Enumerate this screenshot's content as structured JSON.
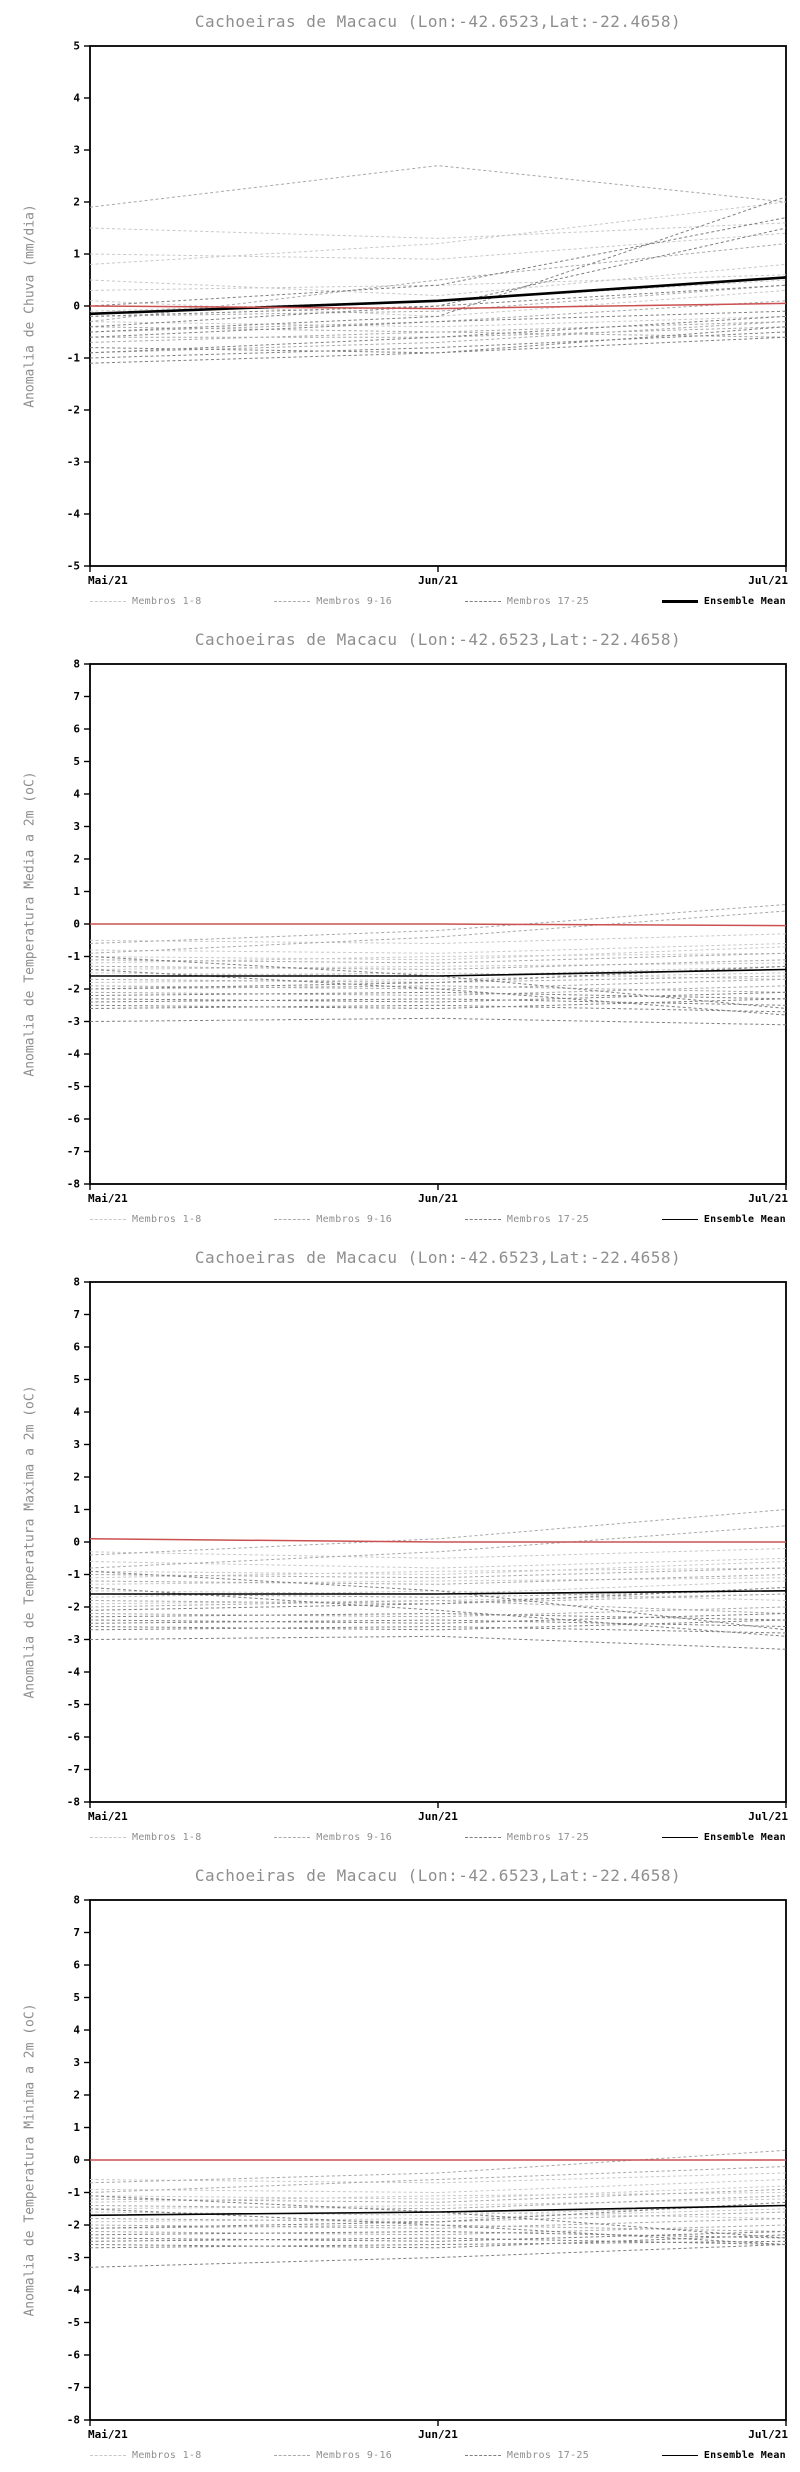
{
  "page_title": "Cachoeiras de Macacu ensemble forecast anomalies",
  "colors": {
    "members_1_8": "#c9c9c9",
    "members_9_16": "#a9a9a9",
    "members_17_25": "#808080",
    "ensemble_mean": "#000000",
    "zero_line": "#cc5050",
    "axis": "#000000",
    "title_gray": "#8e8e8e"
  },
  "chart_data": [
    {
      "type": "line",
      "title": "Cachoeiras de Macacu (Lon:-42.6523,Lat:-22.4658)",
      "ylabel": "Anomalia de Chuva (mm/dia)",
      "xlabel": "",
      "ylim": [
        -5,
        5
      ],
      "ytick_step": 1,
      "x": [
        "Mai/21",
        "Jun/21",
        "Jul/21"
      ],
      "grid": false,
      "legend_position": "bottom",
      "series_groups": [
        {
          "label": "Membros 1-8",
          "color": "#c9c9c9",
          "dash": "3 2.5",
          "width": 1,
          "in_legend": true,
          "label_bold": false,
          "members": [
            [
              1.5,
              1.3,
              1.6
            ],
            [
              1.0,
              0.9,
              1.4
            ],
            [
              0.8,
              1.2,
              2.0
            ],
            [
              0.5,
              0.2,
              0.8
            ],
            [
              0.3,
              0.4,
              0.6
            ],
            [
              0.1,
              -0.2,
              0.3
            ],
            [
              -0.1,
              0.1,
              0.5
            ],
            [
              -0.3,
              -0.4,
              -0.2
            ]
          ]
        },
        {
          "label": "Membros 9-16",
          "color": "#a9a9a9",
          "dash": "3 2.5",
          "width": 1,
          "in_legend": true,
          "label_bold": false,
          "members": [
            [
              1.9,
              2.7,
              2.0
            ],
            [
              -0.2,
              -0.1,
              0.4
            ],
            [
              -0.4,
              -0.5,
              -0.3
            ],
            [
              -0.5,
              -0.3,
              0.1
            ],
            [
              -0.6,
              -0.6,
              -0.4
            ],
            [
              -0.7,
              -0.5,
              -0.6
            ],
            [
              -0.9,
              -0.7,
              -0.3
            ],
            [
              -0.3,
              0.5,
              1.2
            ]
          ]
        },
        {
          "label": "Membros 17-25",
          "color": "#808080",
          "dash": "3 2.5",
          "width": 1,
          "in_legend": true,
          "label_bold": false,
          "members": [
            [
              -1.0,
              -0.8,
              -0.5
            ],
            [
              -1.1,
              -0.9,
              -0.6
            ],
            [
              -0.8,
              -0.9,
              -0.4
            ],
            [
              -0.2,
              0.0,
              1.5
            ],
            [
              0.0,
              0.4,
              1.7
            ],
            [
              -0.4,
              0.0,
              0.4
            ],
            [
              -0.6,
              -0.3,
              -0.1
            ],
            [
              -0.9,
              -0.6,
              -0.2
            ],
            [
              -0.5,
              -0.2,
              2.1
            ]
          ]
        },
        {
          "label": "Ensemble Mean",
          "color": "#000000",
          "dash": "",
          "width": 2.6,
          "in_legend": true,
          "label_bold": true,
          "members": [
            [
              -0.15,
              0.1,
              0.55
            ]
          ]
        },
        {
          "label": "zero-line",
          "color": "#cc5050",
          "dash": "",
          "width": 1.5,
          "in_legend": false,
          "label_bold": false,
          "members": [
            [
              0.0,
              -0.05,
              0.05
            ]
          ]
        }
      ]
    },
    {
      "type": "line",
      "title": "Cachoeiras de Macacu (Lon:-42.6523,Lat:-22.4658)",
      "ylabel": "Anomalia de Temperatura Media a 2m (oC)",
      "xlabel": "",
      "ylim": [
        -8,
        8
      ],
      "ytick_step": 1,
      "x": [
        "Mai/21",
        "Jun/21",
        "Jul/21"
      ],
      "grid": false,
      "legend_position": "bottom",
      "series_groups": [
        {
          "label": "Membros 1-8",
          "color": "#c9c9c9",
          "dash": "3 2.5",
          "width": 1,
          "in_legend": true,
          "label_bold": false,
          "members": [
            [
              -0.5,
              -0.6,
              -0.3
            ],
            [
              -0.8,
              -0.9,
              -0.6
            ],
            [
              -1.0,
              -1.1,
              -0.7
            ],
            [
              -1.2,
              -1.0,
              -0.9
            ],
            [
              -1.4,
              -1.3,
              -1.2
            ],
            [
              -1.5,
              -1.6,
              -1.3
            ],
            [
              -1.6,
              -1.5,
              -1.7
            ],
            [
              -1.8,
              -1.7,
              -1.5
            ]
          ]
        },
        {
          "label": "Membros 9-16",
          "color": "#a9a9a9",
          "dash": "3 2.5",
          "width": 1,
          "in_legend": true,
          "label_bold": false,
          "members": [
            [
              -0.6,
              -0.2,
              0.6
            ],
            [
              -0.9,
              -0.4,
              0.4
            ],
            [
              -1.1,
              -1.2,
              -0.9
            ],
            [
              -1.3,
              -1.4,
              -1.1
            ],
            [
              -1.7,
              -1.8,
              -1.6
            ],
            [
              -1.9,
              -2.0,
              -1.7
            ],
            [
              -2.0,
              -1.9,
              -2.1
            ],
            [
              -2.1,
              -2.2,
              -1.9
            ]
          ]
        },
        {
          "label": "Membros 17-25",
          "color": "#808080",
          "dash": "3 2.5",
          "width": 1,
          "in_legend": true,
          "label_bold": false,
          "members": [
            [
              -2.2,
              -2.1,
              -2.3
            ],
            [
              -2.3,
              -2.4,
              -2.1
            ],
            [
              -2.4,
              -2.3,
              -2.5
            ],
            [
              -2.5,
              -2.6,
              -2.3
            ],
            [
              -3.0,
              -2.9,
              -3.1
            ],
            [
              -1.0,
              -1.6,
              -2.6
            ],
            [
              -1.4,
              -2.0,
              -2.8
            ],
            [
              -2.0,
              -1.8,
              -1.3
            ],
            [
              -2.6,
              -2.5,
              -2.7
            ]
          ]
        },
        {
          "label": "Ensemble Mean",
          "color": "#000000",
          "dash": "",
          "width": 1.6,
          "in_legend": true,
          "label_bold": true,
          "members": [
            [
              -1.6,
              -1.6,
              -1.4
            ]
          ]
        },
        {
          "label": "zero-line",
          "color": "#cc5050",
          "dash": "",
          "width": 1.5,
          "in_legend": false,
          "label_bold": false,
          "members": [
            [
              0.0,
              0.0,
              -0.05
            ]
          ]
        }
      ]
    },
    {
      "type": "line",
      "title": "Cachoeiras de Macacu (Lon:-42.6523,Lat:-22.4658)",
      "ylabel": "Anomalia de Temperatura Maxima a 2m (oC)",
      "xlabel": "",
      "ylim": [
        -8,
        8
      ],
      "ytick_step": 1,
      "x": [
        "Mai/21",
        "Jun/21",
        "Jul/21"
      ],
      "grid": false,
      "legend_position": "bottom",
      "series_groups": [
        {
          "label": "Membros 1-8",
          "color": "#c9c9c9",
          "dash": "3 2.5",
          "width": 1,
          "in_legend": true,
          "label_bold": false,
          "members": [
            [
              -0.3,
              -0.5,
              -0.2
            ],
            [
              -0.6,
              -0.8,
              -0.5
            ],
            [
              -0.9,
              -1.0,
              -0.6
            ],
            [
              -1.1,
              -0.9,
              -0.8
            ],
            [
              -1.3,
              -1.2,
              -1.1
            ],
            [
              -1.5,
              -1.6,
              -1.2
            ],
            [
              -1.7,
              -1.5,
              -1.8
            ],
            [
              -1.9,
              -1.8,
              -1.6
            ]
          ]
        },
        {
          "label": "Membros 9-16",
          "color": "#a9a9a9",
          "dash": "3 2.5",
          "width": 1,
          "in_legend": true,
          "label_bold": false,
          "members": [
            [
              -0.4,
              0.1,
              1.0
            ],
            [
              -0.8,
              -0.3,
              0.5
            ],
            [
              -1.0,
              -1.1,
              -0.8
            ],
            [
              -1.2,
              -1.3,
              -1.0
            ],
            [
              -1.6,
              -1.7,
              -1.5
            ],
            [
              -1.8,
              -1.9,
              -1.6
            ],
            [
              -2.0,
              -1.8,
              -2.2
            ],
            [
              -2.2,
              -2.3,
              -2.0
            ]
          ]
        },
        {
          "label": "Membros 17-25",
          "color": "#808080",
          "dash": "3 2.5",
          "width": 1,
          "in_legend": true,
          "label_bold": false,
          "members": [
            [
              -2.3,
              -2.2,
              -2.4
            ],
            [
              -2.4,
              -2.5,
              -2.2
            ],
            [
              -2.5,
              -2.4,
              -2.6
            ],
            [
              -2.6,
              -2.7,
              -2.4
            ],
            [
              -3.0,
              -2.9,
              -3.3
            ],
            [
              -0.9,
              -1.5,
              -2.7
            ],
            [
              -1.4,
              -2.1,
              -2.9
            ],
            [
              -2.1,
              -1.9,
              -1.4
            ],
            [
              -2.7,
              -2.6,
              -2.8
            ]
          ]
        },
        {
          "label": "Ensemble Mean",
          "color": "#000000",
          "dash": "",
          "width": 1.6,
          "in_legend": true,
          "label_bold": true,
          "members": [
            [
              -1.6,
              -1.6,
              -1.5
            ]
          ]
        },
        {
          "label": "zero-line",
          "color": "#cc5050",
          "dash": "",
          "width": 1.5,
          "in_legend": false,
          "label_bold": false,
          "members": [
            [
              0.1,
              0.0,
              0.0
            ]
          ]
        }
      ]
    },
    {
      "type": "line",
      "title": "Cachoeiras de Macacu (Lon:-42.6523,Lat:-22.4658)",
      "ylabel": "Anomalia de Temperatura Minima a 2m (oC)",
      "xlabel": "",
      "ylim": [
        -8,
        8
      ],
      "ytick_step": 1,
      "x": [
        "Mai/21",
        "Jun/21",
        "Jul/21"
      ],
      "grid": false,
      "legend_position": "bottom",
      "series_groups": [
        {
          "label": "Membros 1-8",
          "color": "#c9c9c9",
          "dash": "3 2.5",
          "width": 1,
          "in_legend": true,
          "label_bold": false,
          "members": [
            [
              -0.6,
              -0.7,
              -0.4
            ],
            [
              -0.9,
              -1.0,
              -0.6
            ],
            [
              -1.1,
              -1.2,
              -0.8
            ],
            [
              -1.3,
              -1.1,
              -1.0
            ],
            [
              -1.5,
              -1.4,
              -1.2
            ],
            [
              -1.6,
              -1.7,
              -1.4
            ],
            [
              -1.7,
              -1.6,
              -1.8
            ],
            [
              -1.9,
              -1.8,
              -1.5
            ]
          ]
        },
        {
          "label": "Membros 9-16",
          "color": "#a9a9a9",
          "dash": "3 2.5",
          "width": 1,
          "in_legend": true,
          "label_bold": false,
          "members": [
            [
              -0.7,
              -0.4,
              0.3
            ],
            [
              -1.0,
              -0.6,
              -0.2
            ],
            [
              -1.2,
              -1.3,
              -0.9
            ],
            [
              -1.4,
              -1.5,
              -1.1
            ],
            [
              -1.8,
              -1.9,
              -1.6
            ],
            [
              -2.0,
              -2.1,
              -1.8
            ],
            [
              -2.1,
              -2.0,
              -2.2
            ],
            [
              -2.2,
              -2.3,
              -2.0
            ]
          ]
        },
        {
          "label": "Membros 17-25",
          "color": "#808080",
          "dash": "3 2.5",
          "width": 1,
          "in_legend": true,
          "label_bold": false,
          "members": [
            [
              -2.3,
              -2.2,
              -2.4
            ],
            [
              -2.4,
              -2.5,
              -2.2
            ],
            [
              -2.5,
              -2.4,
              -2.6
            ],
            [
              -2.6,
              -2.7,
              -2.3
            ],
            [
              -3.3,
              -3.0,
              -2.6
            ],
            [
              -1.1,
              -1.6,
              -2.4
            ],
            [
              -1.5,
              -2.0,
              -2.6
            ],
            [
              -2.1,
              -1.9,
              -1.3
            ],
            [
              -2.7,
              -2.6,
              -2.5
            ]
          ]
        },
        {
          "label": "Ensemble Mean",
          "color": "#000000",
          "dash": "",
          "width": 1.6,
          "in_legend": true,
          "label_bold": true,
          "members": [
            [
              -1.7,
              -1.6,
              -1.4
            ]
          ]
        },
        {
          "label": "zero-line",
          "color": "#cc5050",
          "dash": "",
          "width": 1.5,
          "in_legend": false,
          "label_bold": false,
          "members": [
            [
              0.0,
              0.0,
              0.0
            ]
          ]
        }
      ]
    }
  ]
}
